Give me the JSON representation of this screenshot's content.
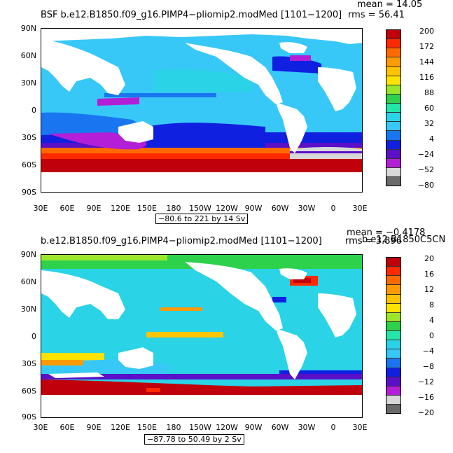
{
  "top": {
    "title": "BSF b.e12.B1850.f09_g16.PIMP4−pliomip2.modMed [1101−1200]",
    "mean": "mean = 14.05",
    "rms": "rms = 56.41",
    "range": "−80.6 to 221 by 14 Sv",
    "lat_labels": [
      "90N",
      "60N",
      "30N",
      "0",
      "30S",
      "60S",
      "90S"
    ],
    "lon_labels": [
      "30E",
      "60E",
      "90E",
      "120E",
      "150E",
      "180",
      "150W",
      "120W",
      "90W",
      "60W",
      "30W",
      "0",
      "30E"
    ],
    "colorbar_labels": [
      "200",
      "172",
      "144",
      "116",
      "88",
      "60",
      "32",
      "4",
      "−24",
      "−52",
      "−80"
    ],
    "colorbar_colors": [
      "#c0000a",
      "#ff2a00",
      "#ff6a00",
      "#ff9a00",
      "#ffc400",
      "#ffe300",
      "#9be62a",
      "#2ed14b",
      "#23e6a8",
      "#2ad3e6",
      "#38c8f8",
      "#1a76f0",
      "#1020e0",
      "#5a0fc8",
      "#b21fd6",
      "#d8d8d8",
      "#6a6a6a"
    ]
  },
  "bottom": {
    "title": "b.e12.B1850.f09_g16.PIMP4−pliomip2.modMed [1101−1200]",
    "title_right": "b.e12.B1850C5CN",
    "mean": "mean = −0.4178",
    "rms": "rms = 3.896",
    "range": "−87.78 to 50.49 by 2 Sv",
    "lat_labels": [
      "90N",
      "60N",
      "30N",
      "0",
      "30S",
      "60S",
      "90S"
    ],
    "lon_labels": [
      "30E",
      "60E",
      "90E",
      "120E",
      "150E",
      "180",
      "150W",
      "120W",
      "90W",
      "60W",
      "30W",
      "0",
      "30E"
    ],
    "colorbar_labels": [
      "20",
      "16",
      "12",
      "8",
      "4",
      "0",
      "−4",
      "−8",
      "−12",
      "−16",
      "−20"
    ],
    "colorbar_colors": [
      "#c0000a",
      "#ff2a00",
      "#ff6a00",
      "#ff9a00",
      "#ffc400",
      "#ffe300",
      "#9be62a",
      "#2ed14b",
      "#23e6a8",
      "#2ad3e6",
      "#38c8f8",
      "#1a76f0",
      "#1020e0",
      "#5a0fc8",
      "#b21fd6",
      "#d8d8d8",
      "#6a6a6a"
    ]
  },
  "colors": {
    "land": "#ffffff",
    "ocean_main": "#2ad3e6",
    "ocean_light": "#38c8f8",
    "ocean_blue": "#1a76f0",
    "deep_blue": "#1020e0",
    "purple": "#b21fd6",
    "acc_red": "#c0000a",
    "acc_orange": "#ff6a00",
    "green": "#2ed14b",
    "yellow": "#ffe300",
    "gray": "#d8d8d8"
  }
}
